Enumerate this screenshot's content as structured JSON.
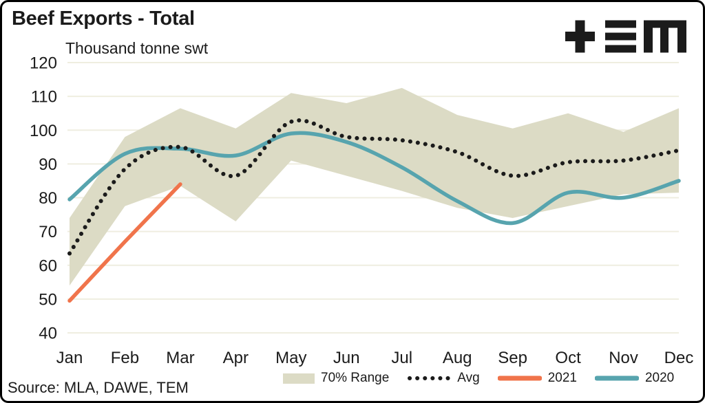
{
  "header": {
    "title": "Beef Exports - Total",
    "subtitle": "Thousand tonne swt"
  },
  "logo": {
    "name": "TEM",
    "color": "#1b1b1b"
  },
  "legend": {
    "items": [
      {
        "label": "70% Range",
        "type": "band",
        "color": "#dcdbc5"
      },
      {
        "label": "Avg",
        "type": "dotted",
        "color": "#1b1b1b"
      },
      {
        "label": "2021",
        "type": "line",
        "color": "#f0744b"
      },
      {
        "label": "2020",
        "type": "line",
        "color": "#57a4ae"
      }
    ]
  },
  "footer": {
    "source": "Source: MLA, DAWE, TEM"
  },
  "chart_data": {
    "type": "line",
    "title": "Beef Exports - Total",
    "ylabel": "Thousand tonne swt",
    "categories": [
      "Jan",
      "Feb",
      "Mar",
      "Apr",
      "May",
      "Jun",
      "Jul",
      "Aug",
      "Sep",
      "Oct",
      "Nov",
      "Dec"
    ],
    "ylim": [
      40,
      120
    ],
    "ytick_step": 10,
    "grid": true,
    "legend_position": "bottom",
    "gridline_color": "#efeee0",
    "series": [
      {
        "name": "70% Range",
        "type": "area-band",
        "color": "#dcdbc5",
        "upper": [
          74,
          98,
          106.5,
          100.5,
          111,
          108,
          112.5,
          104.5,
          100.5,
          105,
          99.5,
          106.5
        ],
        "lower": [
          54,
          77.5,
          83.5,
          73,
          91,
          86.5,
          82,
          77,
          74,
          77.5,
          81,
          81.5
        ]
      },
      {
        "name": "2020",
        "type": "line",
        "smooth": true,
        "color": "#57a4ae",
        "values": [
          79.5,
          93,
          94.5,
          92.5,
          99,
          96.5,
          89,
          79,
          72.5,
          81.5,
          80,
          85
        ]
      },
      {
        "name": "Avg",
        "type": "dotted-line",
        "smooth": true,
        "color": "#1b1b1b",
        "values": [
          63.5,
          88.5,
          95,
          86.5,
          102.5,
          98,
          97,
          93.5,
          86.5,
          90.5,
          91,
          94
        ]
      },
      {
        "name": "2021",
        "type": "line",
        "smooth": false,
        "color": "#f0744b",
        "values": [
          49.5,
          67,
          84,
          null,
          null,
          null,
          null,
          null,
          null,
          null,
          null,
          null
        ]
      }
    ]
  }
}
